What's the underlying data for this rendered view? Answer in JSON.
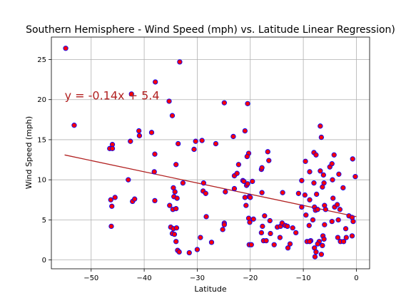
{
  "chart_data": {
    "type": "scatter",
    "title": "Southern Hemisphere - Wind Speed (mph) vs. Latitude Linear Regression)",
    "xlabel": "Latitude",
    "ylabel": "Wind Speed (mph)",
    "xlim": [
      -57.5,
      2.5
    ],
    "ylim": [
      -1.1,
      27.8
    ],
    "xticks": [
      -50,
      -40,
      -30,
      -20,
      -10,
      0
    ],
    "yticks": [
      0,
      5,
      10,
      15,
      20,
      25
    ],
    "xtick_labels": [
      "−50",
      "−40",
      "−30",
      "−20",
      "−10",
      "0"
    ],
    "ytick_labels": [
      "0",
      "5",
      "10",
      "15",
      "20",
      "25"
    ],
    "grid": true,
    "regression": {
      "slope": -0.14,
      "intercept": 5.4,
      "x_range": [
        -55,
        0
      ],
      "equation_label": "y = -0.14x + 5.4",
      "label_position": [
        -55,
        20
      ]
    },
    "colors": {
      "point_fill": "#ff0000",
      "point_edge": "#0000ff",
      "regression_line": "#b22222"
    },
    "points": [
      [
        -54.8,
        26.4
      ],
      [
        -53.2,
        16.8
      ],
      [
        -46.5,
        13.9
      ],
      [
        -46.0,
        14.4
      ],
      [
        -46.0,
        13.9
      ],
      [
        -46.3,
        7.5
      ],
      [
        -46.1,
        6.7
      ],
      [
        -45.5,
        7.8
      ],
      [
        -46.2,
        4.2
      ],
      [
        -42.4,
        20.7
      ],
      [
        -42.6,
        14.8
      ],
      [
        -43.0,
        10.0
      ],
      [
        -42.2,
        7.3
      ],
      [
        -41.8,
        7.6
      ],
      [
        -41.0,
        16.1
      ],
      [
        -40.9,
        15.5
      ],
      [
        -38.6,
        15.9
      ],
      [
        -37.9,
        22.2
      ],
      [
        -38.0,
        13.2
      ],
      [
        -38.1,
        11.0
      ],
      [
        -38.0,
        7.4
      ],
      [
        -35.3,
        19.8
      ],
      [
        -34.7,
        18.0
      ],
      [
        -33.3,
        24.7
      ],
      [
        -33.6,
        14.5
      ],
      [
        -34.0,
        11.9
      ],
      [
        -34.5,
        9.0
      ],
      [
        -34.2,
        8.5
      ],
      [
        -34.4,
        7.9
      ],
      [
        -33.8,
        7.7
      ],
      [
        -32.7,
        9.6
      ],
      [
        -35.2,
        6.8
      ],
      [
        -34.6,
        6.3
      ],
      [
        -34.0,
        6.4
      ],
      [
        -35.0,
        4.1
      ],
      [
        -34.5,
        3.9
      ],
      [
        -34.7,
        3.3
      ],
      [
        -34.3,
        3.2
      ],
      [
        -33.9,
        4.0
      ],
      [
        -34.0,
        2.3
      ],
      [
        -33.7,
        1.2
      ],
      [
        -33.4,
        1.0
      ],
      [
        -31.5,
        0.9
      ],
      [
        -30.6,
        13.8
      ],
      [
        -30.3,
        14.8
      ],
      [
        -29.1,
        14.9
      ],
      [
        -28.8,
        9.6
      ],
      [
        -28.9,
        8.6
      ],
      [
        -28.4,
        8.3
      ],
      [
        -28.3,
        5.4
      ],
      [
        -29.4,
        2.8
      ],
      [
        -30.0,
        1.3
      ],
      [
        -27.3,
        2.2
      ],
      [
        -26.5,
        14.5
      ],
      [
        -24.9,
        19.6
      ],
      [
        -24.7,
        8.5
      ],
      [
        -24.9,
        4.6
      ],
      [
        -24.9,
        4.4
      ],
      [
        -25.2,
        3.8
      ],
      [
        -23.2,
        15.4
      ],
      [
        -23.0,
        10.5
      ],
      [
        -22.5,
        10.8
      ],
      [
        -22.2,
        11.9
      ],
      [
        -23.0,
        8.9
      ],
      [
        -21.0,
        16.1
      ],
      [
        -21.4,
        9.9
      ],
      [
        -21.2,
        9.8
      ],
      [
        -20.5,
        19.5
      ],
      [
        -20.3,
        13.3
      ],
      [
        -20.6,
        12.9
      ],
      [
        -21.0,
        7.8
      ],
      [
        -20.7,
        9.3
      ],
      [
        -20.5,
        9.5
      ],
      [
        -20.2,
        7.9
      ],
      [
        -20.0,
        7.8
      ],
      [
        -19.6,
        9.8
      ],
      [
        -20.8,
        6.8
      ],
      [
        -20.3,
        5.2
      ],
      [
        -20.1,
        4.7
      ],
      [
        -20.2,
        1.9
      ],
      [
        -19.8,
        1.9
      ],
      [
        -19.4,
        5.1
      ],
      [
        -17.9,
        11.3
      ],
      [
        -17.8,
        11.5
      ],
      [
        -17.8,
        8.4
      ],
      [
        -17.3,
        5.5
      ],
      [
        -17.7,
        4.2
      ],
      [
        -17.9,
        3.4
      ],
      [
        -17.5,
        2.4
      ],
      [
        -17.0,
        2.4
      ],
      [
        -16.7,
        13.5
      ],
      [
        -16.5,
        12.4
      ],
      [
        -16.3,
        4.9
      ],
      [
        -16.2,
        3.3
      ],
      [
        -15.5,
        1.9
      ],
      [
        -14.9,
        4.1
      ],
      [
        -14.3,
        4.2
      ],
      [
        -14.0,
        4.6
      ],
      [
        -13.9,
        8.4
      ],
      [
        -14.4,
        2.8
      ],
      [
        -13.4,
        4.3
      ],
      [
        -13.0,
        4.2
      ],
      [
        -12.9,
        1.5
      ],
      [
        -12.0,
        4.0
      ],
      [
        -12.5,
        2.0
      ],
      [
        -11.4,
        3.4
      ],
      [
        -10.9,
        8.3
      ],
      [
        -10.3,
        9.9
      ],
      [
        -10.3,
        6.6
      ],
      [
        -9.6,
        12.3
      ],
      [
        -9.7,
        8.1
      ],
      [
        -9.5,
        5.6
      ],
      [
        -9.3,
        2.3
      ],
      [
        -8.6,
        2.4
      ],
      [
        -8.8,
        11.0
      ],
      [
        -8.8,
        7.5
      ],
      [
        -8.9,
        4.3
      ],
      [
        -8.8,
        2.3
      ],
      [
        -8.0,
        13.4
      ],
      [
        -7.6,
        13.1
      ],
      [
        -8.0,
        9.6
      ],
      [
        -7.5,
        8.2
      ],
      [
        -7.9,
        6.6
      ],
      [
        -7.7,
        6.2
      ],
      [
        -7.3,
        6.3
      ],
      [
        -8.2,
        5.0
      ],
      [
        -7.9,
        1.5
      ],
      [
        -7.6,
        1.0
      ],
      [
        -7.8,
        0.4
      ],
      [
        -7.0,
        2.3
      ],
      [
        -7.3,
        2.0
      ],
      [
        -6.8,
        16.7
      ],
      [
        -6.6,
        15.3
      ],
      [
        -6.8,
        11.1
      ],
      [
        -6.2,
        10.6
      ],
      [
        -6.1,
        9.6
      ],
      [
        -6.4,
        9.1
      ],
      [
        -6.0,
        6.8
      ],
      [
        -5.8,
        6.3
      ],
      [
        -6.0,
        4.4
      ],
      [
        -6.3,
        3.0
      ],
      [
        -6.1,
        2.6
      ],
      [
        -6.4,
        1.8
      ],
      [
        -6.6,
        0.7
      ],
      [
        -5.0,
        11.6
      ],
      [
        -4.6,
        12.0
      ],
      [
        -4.2,
        13.1
      ],
      [
        -4.5,
        10.0
      ],
      [
        -4.4,
        7.7
      ],
      [
        -4.1,
        6.6
      ],
      [
        -3.3,
        10.7
      ],
      [
        -3.6,
        6.9
      ],
      [
        -3.1,
        6.3
      ],
      [
        -3.4,
        5.0
      ],
      [
        -4.6,
        4.8
      ],
      [
        -3.5,
        2.8
      ],
      [
        -3.0,
        2.3
      ],
      [
        -2.4,
        2.3
      ],
      [
        -2.5,
        9.0
      ],
      [
        -2.0,
        3.9
      ],
      [
        -1.9,
        2.8
      ],
      [
        -1.4,
        5.5
      ],
      [
        -0.7,
        12.6
      ],
      [
        -0.2,
        10.4
      ],
      [
        -0.8,
        5.3
      ],
      [
        -0.6,
        4.8
      ],
      [
        -0.8,
        3.0
      ]
    ]
  }
}
